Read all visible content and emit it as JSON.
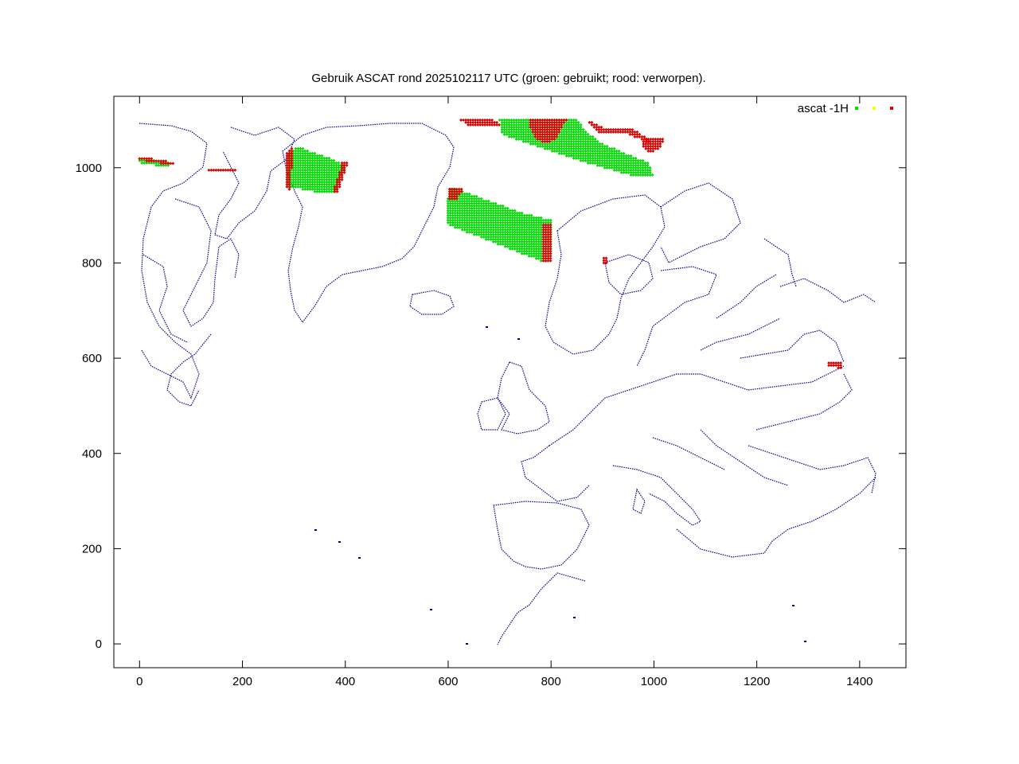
{
  "chart_data": {
    "type": "scatter",
    "title": "Gebruik ASCAT rond 2025102117 UTC (groen: gebruikt; rood: verworpen).",
    "xlabel": "",
    "ylabel": "",
    "xlim": [
      -50,
      1490
    ],
    "ylim": [
      -50,
      1150
    ],
    "x_ticks": [
      0,
      200,
      400,
      600,
      800,
      1000,
      1200,
      1400
    ],
    "y_ticks": [
      0,
      200,
      400,
      600,
      800,
      1000
    ],
    "x_tick_labels": [
      "0",
      "200",
      "400",
      "600",
      "800",
      "1000",
      "1200",
      "1400"
    ],
    "y_tick_labels": [
      "0",
      "200",
      "400",
      "600",
      "800",
      "1000"
    ],
    "grid": false,
    "legend_position": "top-right",
    "legend_label": "ascat -1H",
    "series_colors": {
      "used": "#00dd00",
      "unused": "#ffff00",
      "rejected": "#dd0000"
    },
    "coastline_color": "#00008b",
    "swaths": [
      {
        "status": "used",
        "polygon": [
          [
            0,
            1020
          ],
          [
            60,
            1010
          ],
          [
            60,
            1000
          ],
          [
            0,
            1010
          ]
        ]
      },
      {
        "status": "rejected",
        "polygon": [
          [
            0,
            1024
          ],
          [
            66,
            1012
          ],
          [
            66,
            1004
          ],
          [
            0,
            1016
          ]
        ]
      },
      {
        "status": "rejected",
        "polygon": [
          [
            130,
            1000
          ],
          [
            185,
            998
          ],
          [
            190,
            992
          ],
          [
            135,
            992
          ]
        ]
      },
      {
        "status": "used",
        "polygon": [
          [
            285,
            1020
          ],
          [
            305,
            1045
          ],
          [
            370,
            1020
          ],
          [
            400,
            1005
          ],
          [
            382,
            950
          ],
          [
            360,
            945
          ],
          [
            290,
            960
          ]
        ]
      },
      {
        "status": "rejected",
        "polygon": [
          [
            285,
            1030
          ],
          [
            300,
            1050
          ],
          [
            292,
            950
          ],
          [
            282,
            960
          ]
        ]
      },
      {
        "status": "rejected",
        "polygon": [
          [
            395,
            1015
          ],
          [
            405,
            1010
          ],
          [
            385,
            945
          ],
          [
            375,
            948
          ]
        ]
      },
      {
        "status": "used",
        "polygon": [
          [
            605,
            960
          ],
          [
            745,
            905
          ],
          [
            800,
            890
          ],
          [
            800,
            820
          ],
          [
            790,
            800
          ],
          [
            600,
            880
          ],
          [
            595,
            920
          ]
        ]
      },
      {
        "status": "rejected",
        "polygon": [
          [
            600,
            960
          ],
          [
            630,
            955
          ],
          [
            615,
            930
          ],
          [
            598,
            935
          ]
        ]
      },
      {
        "status": "rejected",
        "polygon": [
          [
            785,
            880
          ],
          [
            800,
            885
          ],
          [
            800,
            805
          ],
          [
            785,
            800
          ]
        ]
      },
      {
        "status": "rejected",
        "polygon": [
          [
            625,
            1100
          ],
          [
            690,
            1100
          ],
          [
            700,
            1090
          ],
          [
            640,
            1085
          ]
        ]
      },
      {
        "status": "used",
        "polygon": [
          [
            700,
            1100
          ],
          [
            850,
            1100
          ],
          [
            870,
            1075
          ],
          [
            900,
            1050
          ],
          [
            990,
            1010
          ],
          [
            1000,
            980
          ],
          [
            950,
            985
          ],
          [
            870,
            1010
          ],
          [
            770,
            1045
          ],
          [
            705,
            1070
          ]
        ]
      },
      {
        "status": "rejected",
        "polygon": [
          [
            760,
            1100
          ],
          [
            830,
            1100
          ],
          [
            810,
            1060
          ],
          [
            790,
            1050
          ],
          [
            770,
            1060
          ],
          [
            760,
            1080
          ]
        ]
      },
      {
        "status": "rejected",
        "polygon": [
          [
            980,
            1060
          ],
          [
            1020,
            1060
          ],
          [
            1010,
            1040
          ],
          [
            990,
            1030
          ],
          [
            975,
            1045
          ]
        ]
      },
      {
        "status": "rejected",
        "polygon": [
          [
            870,
            1100
          ],
          [
            900,
            1085
          ],
          [
            960,
            1080
          ],
          [
            990,
            1060
          ],
          [
            995,
            1050
          ],
          [
            950,
            1070
          ],
          [
            890,
            1075
          ]
        ]
      },
      {
        "status": "rejected",
        "polygon": [
          [
            900,
            810
          ],
          [
            910,
            810
          ],
          [
            908,
            795
          ],
          [
            898,
            795
          ]
        ]
      },
      {
        "status": "rejected",
        "polygon": [
          [
            1340,
            590
          ],
          [
            1365,
            590
          ],
          [
            1368,
            578
          ],
          [
            1340,
            582
          ]
        ]
      }
    ]
  }
}
